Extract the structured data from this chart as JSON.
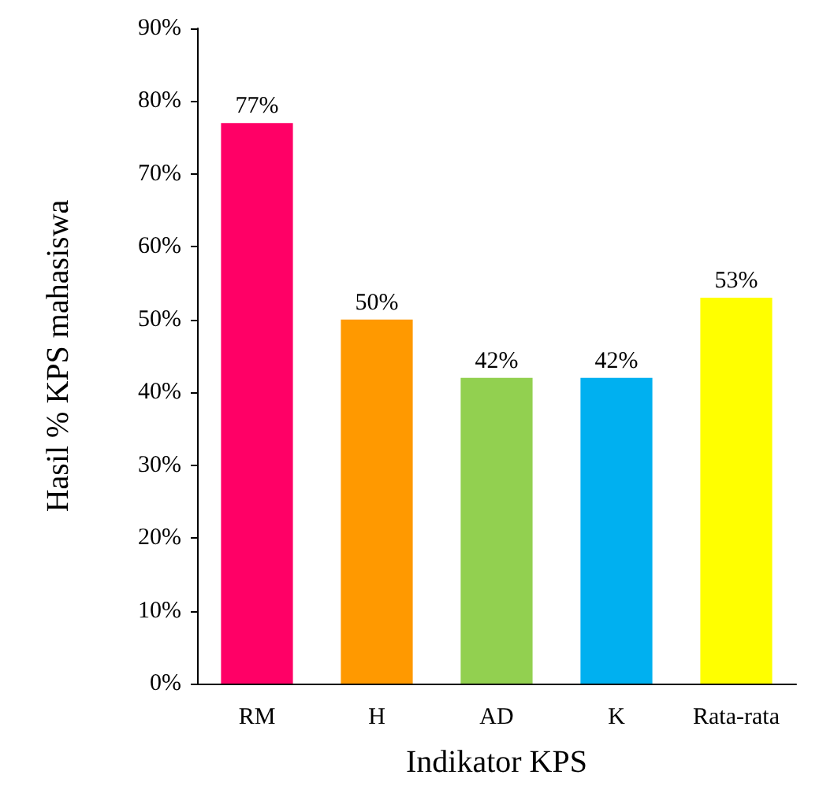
{
  "chart_data": {
    "type": "bar",
    "xlabel": "Indikator KPS",
    "ylabel": "Hasil % KPS mahasiswa",
    "categories": [
      "RM",
      "H",
      "AD",
      "K",
      "Rata-rata"
    ],
    "values": [
      77,
      50,
      42,
      42,
      53
    ],
    "colors": [
      "#ff0066",
      "#ff9900",
      "#92d050",
      "#00b0f0",
      "#ffff00"
    ],
    "value_labels": [
      "77%",
      "50%",
      "42%",
      "42%",
      "53%"
    ],
    "ylim": [
      0,
      90
    ],
    "yticks": [
      {
        "value": 0,
        "label": "0%"
      },
      {
        "value": 10,
        "label": "10%"
      },
      {
        "value": 20,
        "label": "20%"
      },
      {
        "value": 30,
        "label": "30%"
      },
      {
        "value": 40,
        "label": "40%"
      },
      {
        "value": 50,
        "label": "50%"
      },
      {
        "value": 60,
        "label": "60%"
      },
      {
        "value": 70,
        "label": "70%"
      },
      {
        "value": 80,
        "label": "80%"
      },
      {
        "value": 90,
        "label": "90%"
      }
    ],
    "grid": false
  }
}
